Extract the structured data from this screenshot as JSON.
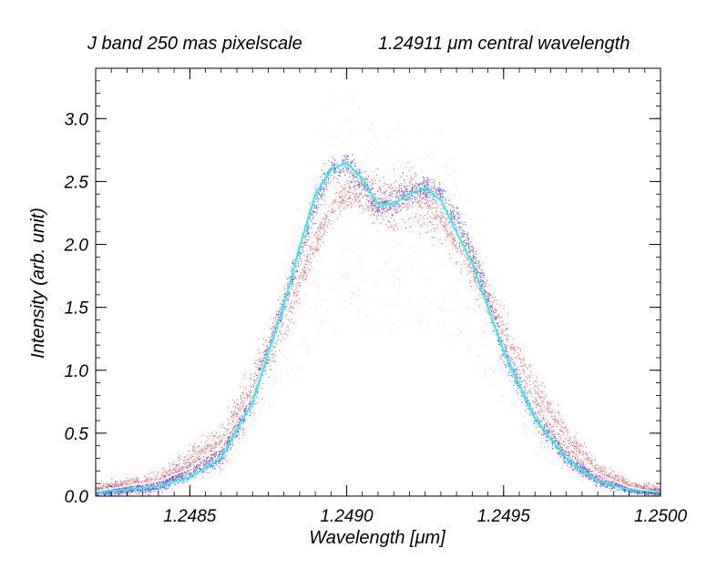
{
  "chart_data": {
    "type": "scatter",
    "title_left": "J band 250 mas pixelscale",
    "title_right_value": "1.24911",
    "title_right_unit": "μm central wavelength",
    "xlabel": "Wavelength [μm]",
    "ylabel": "Intensity (arb. unit)",
    "xlim": [
      1.2482,
      1.25
    ],
    "ylim": [
      0.0,
      3.4
    ],
    "x_ticks": [
      1.2485,
      1.249,
      1.2495,
      1.25
    ],
    "x_tick_labels": [
      "1.2485",
      "1.2490",
      "1.2495",
      "1.2500"
    ],
    "y_ticks": [
      0.0,
      0.5,
      1.0,
      1.5,
      2.0,
      2.5,
      3.0
    ],
    "y_tick_labels": [
      "0.0",
      "0.5",
      "1.0",
      "1.5",
      "2.0",
      "2.5",
      "3.0"
    ],
    "series": [
      {
        "name": "red pixels scatter",
        "color": "#ff0000",
        "center_x": [
          1.2482,
          1.2484,
          1.2486,
          1.2487,
          1.2488,
          1.2489,
          1.24895,
          1.249,
          1.24905,
          1.2491,
          1.24915,
          1.2492,
          1.2493,
          1.2494,
          1.2495,
          1.2496,
          1.2497,
          1.2498,
          1.2499,
          1.25
        ],
        "center_y": [
          0.05,
          0.12,
          0.42,
          0.85,
          1.45,
          2.05,
          2.3,
          2.42,
          2.4,
          2.35,
          2.33,
          2.4,
          2.22,
          1.8,
          1.3,
          0.82,
          0.45,
          0.2,
          0.08,
          0.04
        ],
        "spread": [
          0.05,
          0.08,
          0.15,
          0.2,
          0.2,
          0.15,
          0.12,
          0.12,
          0.15,
          0.18,
          0.22,
          0.25,
          0.18,
          0.15,
          0.15,
          0.15,
          0.12,
          0.08,
          0.05,
          0.04
        ]
      },
      {
        "name": "blue pixels scatter",
        "color": "#0000ff",
        "center_x": [
          1.2482,
          1.2484,
          1.2486,
          1.2487,
          1.2488,
          1.2489,
          1.24895,
          1.249,
          1.24905,
          1.2491,
          1.24915,
          1.2492,
          1.24925,
          1.2493,
          1.2494,
          1.2495,
          1.2496,
          1.2497,
          1.2498,
          1.2499,
          1.25
        ],
        "center_y": [
          0.03,
          0.08,
          0.32,
          0.8,
          1.55,
          2.35,
          2.6,
          2.65,
          2.5,
          2.3,
          2.35,
          2.42,
          2.45,
          2.4,
          1.95,
          1.15,
          0.62,
          0.3,
          0.12,
          0.05,
          0.03
        ],
        "spread": [
          0.04,
          0.05,
          0.08,
          0.1,
          0.1,
          0.12,
          0.1,
          0.08,
          0.1,
          0.1,
          0.1,
          0.1,
          0.1,
          0.1,
          0.12,
          0.1,
          0.08,
          0.06,
          0.04,
          0.03,
          0.03
        ]
      },
      {
        "name": "red mean curve",
        "color": "#ffffff",
        "x": [
          1.2482,
          1.2484,
          1.2485,
          1.2486,
          1.2487,
          1.2488,
          1.24885,
          1.2489,
          1.24895,
          1.249,
          1.24905,
          1.2491,
          1.24915,
          1.2492,
          1.24925,
          1.2493,
          1.24935,
          1.2494,
          1.2495,
          1.2496,
          1.2497,
          1.2498,
          1.2499,
          1.25
        ],
        "y": [
          0.04,
          0.12,
          0.22,
          0.4,
          0.82,
          1.42,
          1.78,
          2.12,
          2.35,
          2.43,
          2.42,
          2.38,
          2.36,
          2.33,
          2.25,
          2.12,
          1.92,
          1.72,
          1.25,
          0.8,
          0.42,
          0.18,
          0.07,
          0.03
        ]
      },
      {
        "name": "blue mean curve",
        "color": "#00ffff",
        "x": [
          1.2482,
          1.2484,
          1.2485,
          1.2486,
          1.2487,
          1.2488,
          1.24885,
          1.2489,
          1.24895,
          1.249,
          1.24905,
          1.2491,
          1.24915,
          1.2492,
          1.24925,
          1.2493,
          1.24935,
          1.2494,
          1.2495,
          1.2496,
          1.2497,
          1.2498,
          1.2499,
          1.25
        ],
        "y": [
          0.03,
          0.08,
          0.15,
          0.3,
          0.75,
          1.52,
          1.98,
          2.4,
          2.6,
          2.65,
          2.52,
          2.32,
          2.32,
          2.4,
          2.45,
          2.35,
          2.1,
          1.85,
          1.15,
          0.62,
          0.3,
          0.12,
          0.05,
          0.03
        ]
      }
    ]
  }
}
